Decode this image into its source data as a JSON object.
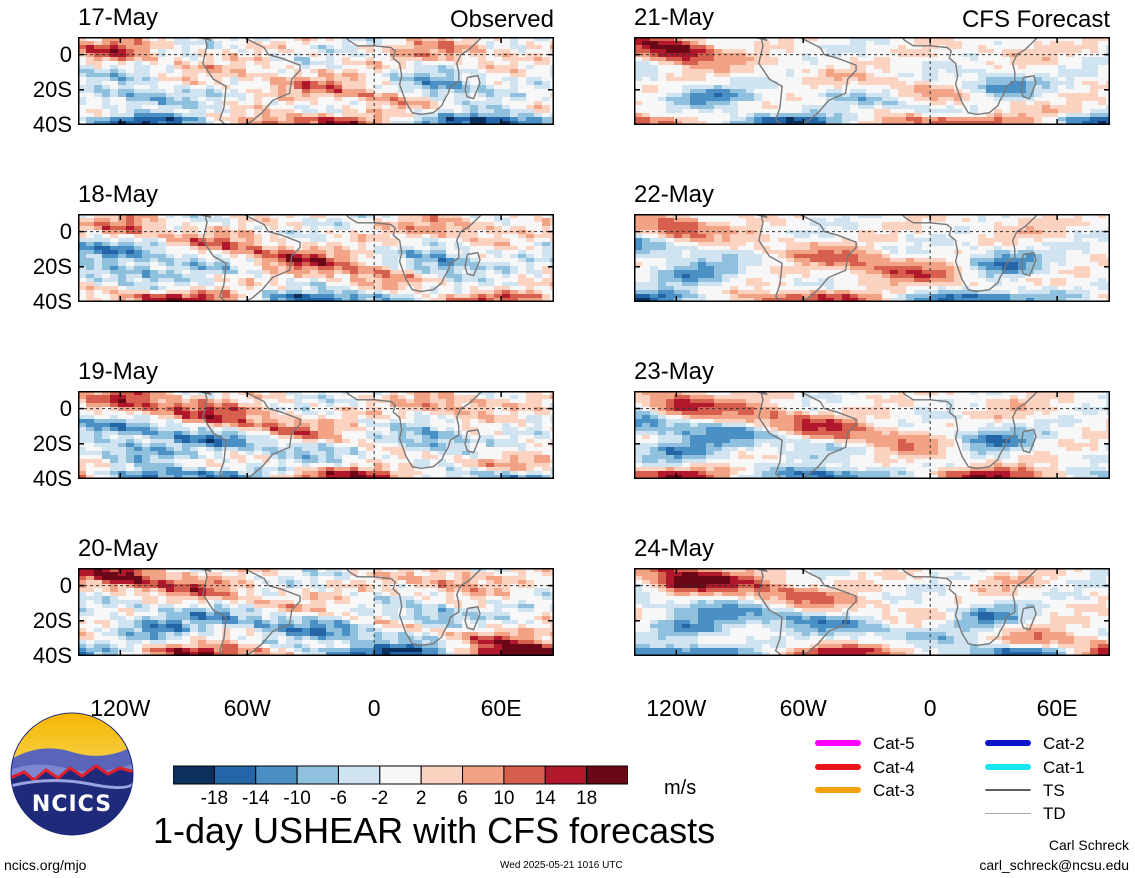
{
  "left_tag": "Observed",
  "right_tag": "CFS Forecast",
  "title": "1-day USHEAR with CFS forecasts",
  "units": "m/s",
  "footer_left": "ncics.org/mjo",
  "footer_center": "Wed 2025-05-21 1016 UTC",
  "author": "Carl Schreck",
  "email": "carl_schreck@ncsu.edu",
  "logo_text": "NCICS",
  "y_ticks": [
    "0",
    "20S",
    "40S"
  ],
  "x_ticks": [
    "120W",
    "60W",
    "0",
    "60E"
  ],
  "colorbar": {
    "colors": [
      "#0b305e",
      "#2365a7",
      "#4a90c4",
      "#8fc0de",
      "#cfe3f1",
      "#f7f7f7",
      "#fbd3c0",
      "#f2a385",
      "#d6604d",
      "#b2182b",
      "#6b0818"
    ],
    "labels": [
      "-18",
      "-14",
      "-10",
      "-6",
      "-2",
      "2",
      "6",
      "10",
      "14",
      "18"
    ]
  },
  "legend": [
    {
      "label": "Cat-5",
      "color": "#ff00ff"
    },
    {
      "label": "Cat-4",
      "color": "#e8161b"
    },
    {
      "label": "Cat-3",
      "color": "#f5a20a"
    },
    {
      "label": "Cat-2",
      "color": "#0a14c8"
    },
    {
      "label": "Cat-1",
      "color": "#15e8f0"
    },
    {
      "label": "TS",
      "color": "#606060"
    },
    {
      "label": "TD",
      "color": "#a8a8a8"
    }
  ],
  "chart_data": {
    "type": "heatmap",
    "variable": "1-day USHEAR",
    "units": "m/s",
    "levels": [
      -18,
      -14,
      -10,
      -6,
      -2,
      2,
      6,
      10,
      14,
      18
    ],
    "panels": [
      {
        "date": "17-May",
        "type": "Observed"
      },
      {
        "date": "18-May",
        "type": "Observed"
      },
      {
        "date": "19-May",
        "type": "Observed"
      },
      {
        "date": "20-May",
        "type": "Observed"
      },
      {
        "date": "21-May",
        "type": "CFS Forecast"
      },
      {
        "date": "22-May",
        "type": "CFS Forecast"
      },
      {
        "date": "23-May",
        "type": "CFS Forecast"
      },
      {
        "date": "24-May",
        "type": "CFS Forecast"
      }
    ]
  }
}
